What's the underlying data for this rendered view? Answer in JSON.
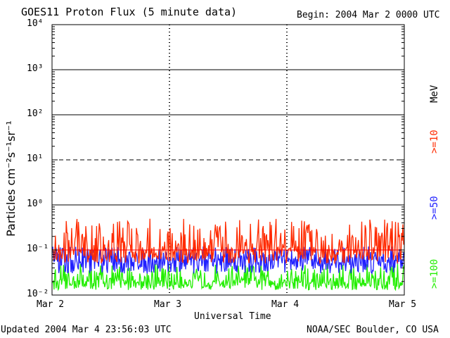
{
  "header": {
    "title": "GOES11 Proton Flux (5 minute data)",
    "begin": "Begin: 2004 Mar 2 0000 UTC"
  },
  "footer": {
    "updated": "Updated 2004 Mar  4 23:56:03 UTC",
    "credit": "NOAA/SEC Boulder, CO USA"
  },
  "colors": {
    "ge10": "#ff2a00",
    "ge50": "#2020ff",
    "ge100": "#22ee00",
    "threshold": "#ff0000"
  },
  "chart_data": {
    "type": "line",
    "title": "GOES11 Proton Flux (5 minute data)",
    "xlabel": "Universal Time",
    "ylabel": "Particles cm⁻²s⁻¹sr⁻¹",
    "yscale": "log",
    "ylim": [
      0.01,
      10000
    ],
    "yticks": [
      "10⁻²",
      "10⁻¹",
      "10⁰",
      "10¹",
      "10²",
      "10³",
      "10⁴"
    ],
    "xlim": [
      "2004-03-02",
      "2004-03-05"
    ],
    "x_tick_labels": [
      "Mar 2",
      "Mar 3",
      "Mar 4",
      "Mar 5"
    ],
    "grid": true,
    "legend_position": "right",
    "unit_label": "MeV",
    "threshold_line": 0.1,
    "series": [
      {
        "name": ">=10",
        "min": 0.05,
        "max": 0.5,
        "typical": 0.1
      },
      {
        "name": ">=50",
        "min": 0.03,
        "max": 0.12,
        "typical": 0.06
      },
      {
        "name": ">=100",
        "min": 0.013,
        "max": 0.05,
        "typical": 0.02
      }
    ]
  }
}
